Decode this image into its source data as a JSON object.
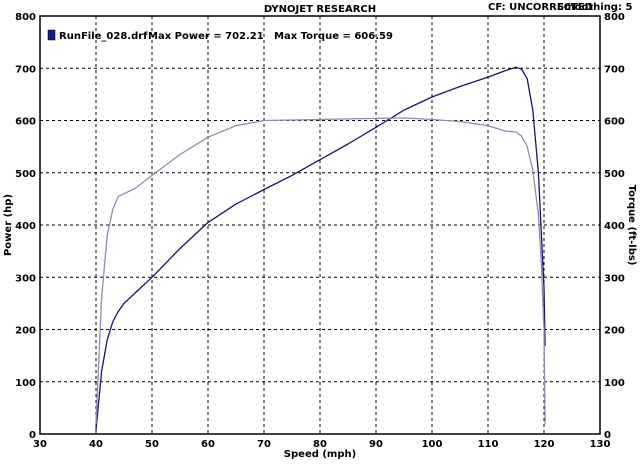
{
  "header": {
    "title": "DYNOJET RESEARCH",
    "correction": "CF: UNCORRECTED",
    "smoothing": "Smoothing: 5"
  },
  "legend": {
    "run_file": "RunFile_028.drf",
    "max_power": "Max Power = 702.21",
    "max_torque": "Max Torque = 606.59",
    "swatch_color": "#1a1a8c"
  },
  "chart_data": {
    "type": "line",
    "xlabel": "Speed (mph)",
    "ylabel_left": "Power (hp)",
    "ylabel_right": "Torque (ft-lbs)",
    "xlim": [
      30,
      130
    ],
    "ylim": [
      0,
      800
    ],
    "xticks": [
      30,
      40,
      50,
      60,
      70,
      80,
      90,
      100,
      110,
      120,
      130
    ],
    "yticks": [
      0,
      100,
      200,
      300,
      400,
      500,
      600,
      700,
      800
    ],
    "grid": true,
    "series": [
      {
        "name": "Power",
        "axis": "left",
        "color": "#14146e",
        "x": [
          40,
          41,
          42,
          43,
          44,
          45,
          47,
          50,
          55,
          60,
          65,
          70,
          75,
          80,
          85,
          90,
          95,
          100,
          105,
          110,
          113,
          115,
          116,
          117,
          118,
          119,
          119.5,
          120,
          120.2
        ],
        "y": [
          8,
          120,
          180,
          215,
          235,
          250,
          270,
          300,
          355,
          405,
          440,
          468,
          495,
          525,
          555,
          587,
          620,
          645,
          665,
          683,
          695,
          702,
          698,
          680,
          620,
          500,
          390,
          280,
          170
        ]
      },
      {
        "name": "Torque",
        "axis": "right",
        "color": "#8c8cb4",
        "x": [
          40,
          40.5,
          41,
          42,
          43,
          44,
          45,
          47,
          50,
          55,
          60,
          65,
          70,
          75,
          80,
          85,
          90,
          95,
          100,
          105,
          110,
          113,
          115,
          116,
          117,
          118,
          119,
          119.5,
          120,
          120.2
        ],
        "y": [
          20,
          140,
          260,
          380,
          430,
          455,
          460,
          470,
          495,
          535,
          568,
          590,
          600,
          601,
          602,
          603,
          604,
          605,
          602,
          598,
          590,
          580,
          578,
          570,
          550,
          505,
          420,
          330,
          200,
          20
        ]
      }
    ]
  }
}
